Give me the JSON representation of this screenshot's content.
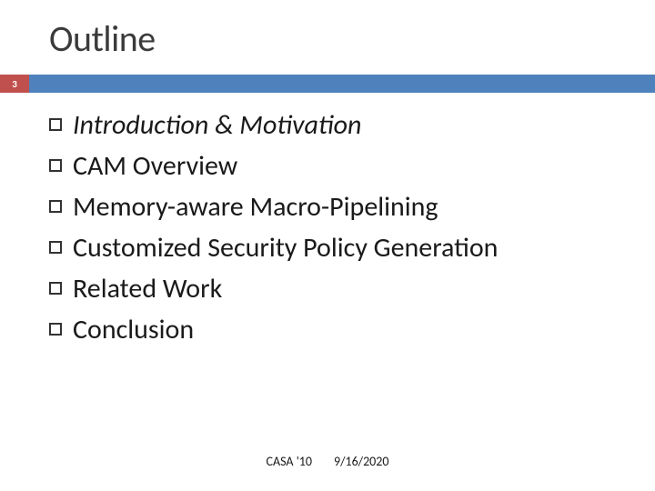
{
  "title": "Outline",
  "page_number": "3",
  "colors": {
    "accent_red": "#c0504d",
    "accent_blue": "#4f81bd",
    "title_text": "#3b3b3b",
    "body_text": "#1a1a1a",
    "background": "#ffffff"
  },
  "typography": {
    "title_fontsize": 40,
    "body_fontsize": 30,
    "footer_fontsize": 14
  },
  "items": [
    {
      "label": "Introduction & Motivation",
      "italic": true
    },
    {
      "label": "CAM Overview",
      "italic": false
    },
    {
      "label": "Memory-aware Macro-Pipelining",
      "italic": false
    },
    {
      "label": "Customized Security Policy Generation",
      "italic": false
    },
    {
      "label": "Related Work",
      "italic": false
    },
    {
      "label": "Conclusion",
      "italic": false
    }
  ],
  "footer": {
    "conference": "CASA '10",
    "date": "9/16/2020"
  }
}
